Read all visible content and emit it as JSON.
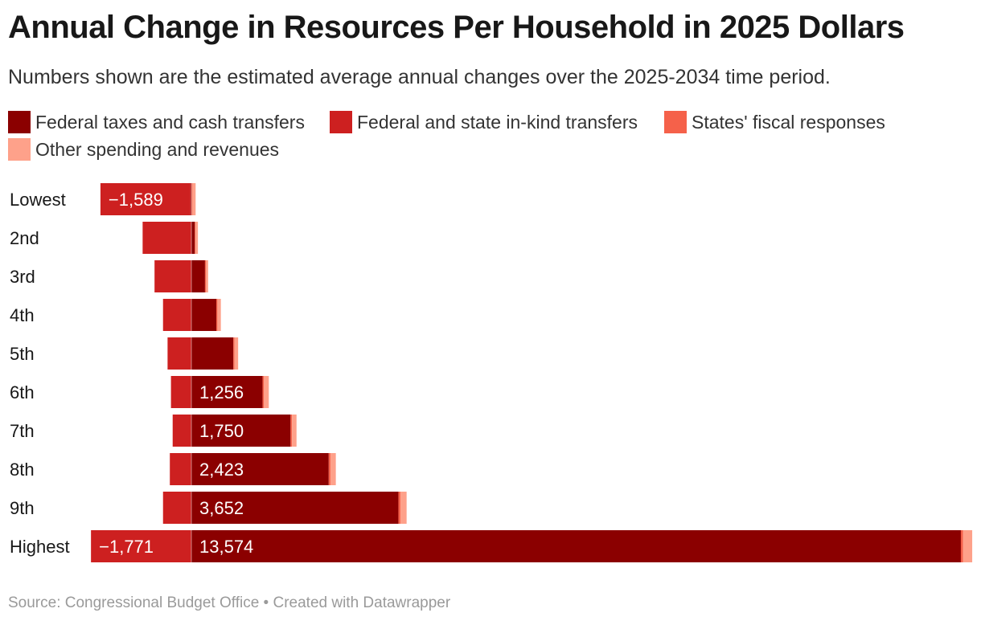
{
  "title": "Annual Change in Resources Per Household in 2025 Dollars",
  "subtitle": "Numbers shown are the estimated average annual changes over the 2025-2034 time period.",
  "source": "Source: Congressional Budget Office • Created with Datawrapper",
  "legend": [
    {
      "label": "Federal taxes and cash transfers",
      "color": "#8b0000"
    },
    {
      "label": "Federal and state in-kind transfers",
      "color": "#cd2020"
    },
    {
      "label": "States' fiscal responses",
      "color": "#f5614a"
    },
    {
      "label": "Other spending and revenues",
      "color": "#fea18a"
    }
  ],
  "chart_data": {
    "type": "bar",
    "orientation": "horizontal",
    "stacked": true,
    "categories": [
      "Lowest",
      "2nd",
      "3rd",
      "4th",
      "5th",
      "6th",
      "7th",
      "8th",
      "9th",
      "Highest"
    ],
    "series": [
      {
        "name": "Federal taxes and cash transfers",
        "color": "#8b0000",
        "values": [
          -15,
          60,
          240,
          440,
          740,
          1256,
          1750,
          2423,
          3652,
          13574
        ],
        "labels": [
          "",
          "",
          "",
          "",
          "",
          "1,256",
          "1,750",
          "2,423",
          "3,652",
          "13,574"
        ]
      },
      {
        "name": "Federal and state in-kind transfers",
        "color": "#cd2020",
        "values": [
          -1589,
          -860,
          -650,
          -500,
          -420,
          -360,
          -330,
          -380,
          -500,
          -1771
        ],
        "labels": [
          "−1,589",
          "",
          "",
          "",
          "",
          "",
          "",
          "",
          "",
          "−1,771"
        ]
      },
      {
        "name": "States' fiscal responses",
        "color": "#f5614a",
        "values": [
          20,
          15,
          15,
          20,
          20,
          25,
          25,
          30,
          35,
          40
        ],
        "labels": [
          "",
          "",
          "",
          "",
          "",
          "",
          "",
          "",
          "",
          ""
        ]
      },
      {
        "name": "Other spending and revenues",
        "color": "#fea18a",
        "values": [
          55,
          40,
          40,
          60,
          65,
          85,
          80,
          95,
          110,
          160
        ],
        "labels": [
          "",
          "",
          "",
          "",
          "",
          "",
          "",
          "",
          "",
          ""
        ]
      }
    ]
  }
}
